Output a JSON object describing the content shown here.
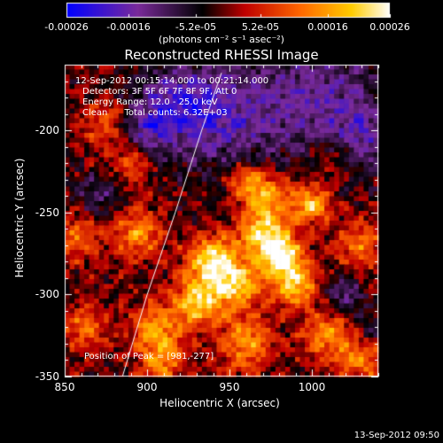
{
  "chart_data": {
    "type": "heatmap",
    "title": "Reconstructed RHESSI Image",
    "xlabel": "Heliocentric X (arcsec)",
    "ylabel": "Heliocentric Y (arcsec)",
    "xlim": [
      850,
      1040
    ],
    "ylim": [
      -350,
      -160
    ],
    "x_ticks": [
      "850",
      "900",
      "950",
      "1000"
    ],
    "x_tick_values": [
      850,
      900,
      950,
      1000
    ],
    "y_ticks": [
      "-200",
      "-250",
      "-300",
      "-350"
    ],
    "y_tick_values": [
      -200,
      -250,
      -300,
      -350
    ],
    "colorbar": {
      "ticks": [
        "-0.00026",
        "-0.00016",
        "-5.2e-05",
        "5.2e-05",
        "0.00016",
        "0.00026"
      ],
      "tick_values": [
        -0.00026,
        -0.00016,
        -5.2e-05,
        5.2e-05,
        0.00016,
        0.00026
      ],
      "range": [
        -0.00026,
        0.00026
      ],
      "units": "(photons cm⁻² s⁻¹ asec⁻²)",
      "colormap": [
        "#0000ff",
        "#7a2a9a",
        "#000000",
        "#c00000",
        "#ff6600",
        "#ffcc00",
        "#ffffff"
      ]
    },
    "annotations": {
      "time_range": "12-Sep-2012 00:15:14.000 to 00:21:14.000",
      "detectors": "Detectors: 3F 5F 6F 7F 8F 9F, Att 0",
      "energy_range": "Energy Range: 12.0 - 25.0 keV",
      "method": "Clean      Total counts: 6.32E+03",
      "peak": "Position of Peak = [981,-277]"
    },
    "peak_position": [
      981,
      -277
    ],
    "limb_curve": [
      [
        885,
        -350
      ],
      [
        900,
        -300
      ],
      [
        917,
        -250
      ],
      [
        933,
        -200
      ],
      [
        945,
        -165
      ]
    ],
    "blobs": [
      {
        "x": 981,
        "y": -277,
        "amp": 1.0,
        "sigma": 9
      },
      {
        "x": 970,
        "y": -262,
        "amp": 0.75,
        "sigma": 10
      },
      {
        "x": 990,
        "y": -295,
        "amp": 0.7,
        "sigma": 9
      },
      {
        "x": 940,
        "y": -280,
        "amp": 0.85,
        "sigma": 11
      },
      {
        "x": 955,
        "y": -295,
        "amp": 0.7,
        "sigma": 10
      },
      {
        "x": 930,
        "y": -305,
        "amp": 0.75,
        "sigma": 10
      },
      {
        "x": 1000,
        "y": -245,
        "amp": 0.7,
        "sigma": 8
      },
      {
        "x": 975,
        "y": -240,
        "amp": 0.55,
        "sigma": 10
      },
      {
        "x": 960,
        "y": -232,
        "amp": 0.55,
        "sigma": 8
      },
      {
        "x": 1008,
        "y": -325,
        "amp": 0.55,
        "sigma": 10
      },
      {
        "x": 960,
        "y": -330,
        "amp": 0.55,
        "sigma": 12
      },
      {
        "x": 905,
        "y": -320,
        "amp": 0.55,
        "sigma": 10
      },
      {
        "x": 895,
        "y": -262,
        "amp": 0.55,
        "sigma": 10
      },
      {
        "x": 910,
        "y": -340,
        "amp": 0.5,
        "sigma": 10
      },
      {
        "x": 1030,
        "y": -270,
        "amp": 0.45,
        "sigma": 10
      },
      {
        "x": 1030,
        "y": -340,
        "amp": 0.5,
        "sigma": 10
      },
      {
        "x": 858,
        "y": -265,
        "amp": 0.4,
        "sigma": 10
      },
      {
        "x": 875,
        "y": -195,
        "amp": 0.35,
        "sigma": 10
      },
      {
        "x": 890,
        "y": -220,
        "amp": 0.35,
        "sigma": 9
      },
      {
        "x": 862,
        "y": -320,
        "amp": 0.4,
        "sigma": 10
      },
      {
        "x": 1012,
        "y": -215,
        "amp": 0.3,
        "sigma": 9
      },
      {
        "x": 945,
        "y": -190,
        "amp": -0.5,
        "sigma": 24
      },
      {
        "x": 1005,
        "y": -180,
        "amp": -0.45,
        "sigma": 26
      },
      {
        "x": 915,
        "y": -185,
        "amp": -0.45,
        "sigma": 16
      },
      {
        "x": 1030,
        "y": -205,
        "amp": -0.35,
        "sigma": 14
      },
      {
        "x": 870,
        "y": -240,
        "amp": -0.3,
        "sigma": 10
      },
      {
        "x": 1020,
        "y": -300,
        "amp": -0.35,
        "sigma": 8
      },
      {
        "x": 1035,
        "y": -320,
        "amp": -0.3,
        "sigma": 7
      },
      {
        "x": 900,
        "y": -200,
        "amp": -0.35,
        "sigma": 10
      }
    ]
  },
  "footer": {
    "timestamp": "13-Sep-2012 09:50"
  }
}
